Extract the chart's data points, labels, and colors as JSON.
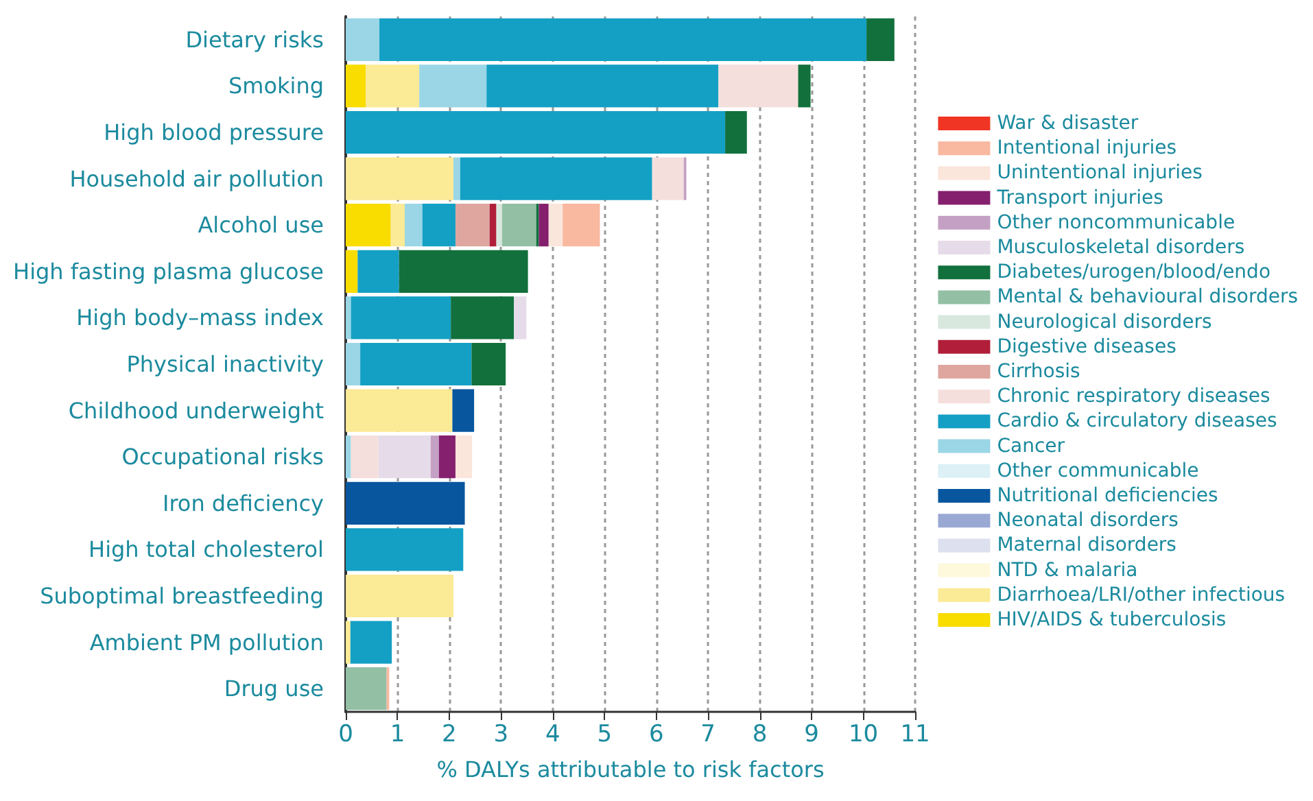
{
  "chart_data": {
    "type": "bar",
    "orientation": "horizontal",
    "stacked": true,
    "xlabel": "% DALYs attributable to risk factors",
    "categories": [
      "Dietary risks",
      "Smoking",
      "High blood pressure",
      "Household air pollution",
      "Alcohol use",
      "High fasting plasma glucose",
      "High body–mass index",
      "Physical inactivity",
      "Childhood underweight",
      "Occupational risks",
      "Iron deficiency",
      "High total cholesterol",
      "Suboptimal breastfeeding",
      "Ambient PM pollution",
      "Drug use"
    ],
    "xlim": [
      0,
      11
    ],
    "xticks": [
      0,
      1,
      2,
      3,
      4,
      5,
      6,
      7,
      8,
      9,
      10,
      11
    ],
    "grid": "x",
    "legend": "right",
    "series": [
      {
        "name": "HIV/AIDS & tuberculosis",
        "color": "#f9dc00",
        "values": [
          null,
          0.39,
          null,
          null,
          0.87,
          0.23,
          null,
          null,
          null,
          null,
          null,
          null,
          null,
          null,
          null
        ]
      },
      {
        "name": "Diarrhoea/LRI/other infectious",
        "color": "#fbea96",
        "values": [
          null,
          1.03,
          null,
          2.08,
          0.27,
          null,
          null,
          null,
          2.06,
          null,
          null,
          null,
          2.08,
          0.09,
          null
        ]
      },
      {
        "name": "NTD & malaria",
        "color": "#fef8dc",
        "values": [
          null,
          null,
          null,
          null,
          null,
          null,
          null,
          null,
          null,
          null,
          null,
          null,
          null,
          null,
          null
        ]
      },
      {
        "name": "Maternal disorders",
        "color": "#dde0ef",
        "values": [
          null,
          null,
          null,
          null,
          null,
          null,
          null,
          null,
          null,
          null,
          null,
          null,
          null,
          null,
          null
        ]
      },
      {
        "name": "Neonatal disorders",
        "color": "#9aa8d4",
        "values": [
          null,
          null,
          null,
          null,
          null,
          null,
          null,
          null,
          null,
          null,
          null,
          null,
          null,
          null,
          null
        ]
      },
      {
        "name": "Nutritional deficiencies",
        "color": "#08569e",
        "values": [
          null,
          null,
          null,
          null,
          null,
          null,
          null,
          null,
          0.42,
          null,
          2.3,
          null,
          null,
          null,
          null
        ]
      },
      {
        "name": "Other communicable",
        "color": "#dcf0f5",
        "values": [
          null,
          null,
          null,
          null,
          null,
          null,
          null,
          null,
          null,
          null,
          null,
          null,
          null,
          null,
          null
        ]
      },
      {
        "name": "Cancer",
        "color": "#9ad6e6",
        "values": [
          0.65,
          1.3,
          null,
          0.13,
          0.34,
          null,
          0.1,
          0.28,
          null,
          0.1,
          null,
          null,
          null,
          null,
          null
        ]
      },
      {
        "name": "Cardio & circulatory diseases",
        "color": "#14a0c4",
        "values": [
          9.41,
          4.48,
          7.33,
          3.71,
          0.64,
          0.8,
          1.93,
          2.15,
          null,
          null,
          null,
          2.27,
          null,
          0.8,
          null
        ]
      },
      {
        "name": "Chronic respiratory diseases",
        "color": "#f5dfdc",
        "values": [
          null,
          1.54,
          null,
          0.61,
          null,
          null,
          null,
          null,
          null,
          0.53,
          null,
          null,
          null,
          null,
          null
        ]
      },
      {
        "name": "Cirrhosis",
        "color": "#dfa6a0",
        "values": [
          null,
          null,
          null,
          null,
          0.66,
          null,
          null,
          null,
          null,
          null,
          null,
          null,
          null,
          null,
          null
        ]
      },
      {
        "name": "Digestive diseases",
        "color": "#b01e3a",
        "values": [
          null,
          null,
          null,
          null,
          0.13,
          null,
          null,
          null,
          null,
          null,
          null,
          null,
          null,
          null,
          null
        ]
      },
      {
        "name": "Neurological disorders",
        "color": "#d8e8de",
        "values": [
          null,
          null,
          null,
          null,
          0.11,
          null,
          null,
          null,
          null,
          null,
          null,
          null,
          null,
          null,
          null
        ]
      },
      {
        "name": "Mental & behavioural disorders",
        "color": "#93bfa5",
        "values": [
          null,
          null,
          null,
          null,
          0.66,
          null,
          null,
          null,
          null,
          null,
          null,
          null,
          null,
          null,
          0.79
        ]
      },
      {
        "name": "Diabetes/urogen/blood/endo",
        "color": "#12703c",
        "values": [
          0.54,
          0.24,
          0.42,
          null,
          0.05,
          2.49,
          1.22,
          0.66,
          null,
          null,
          null,
          null,
          null,
          null,
          null
        ]
      },
      {
        "name": "Musculoskeletal disorders",
        "color": "#e6dbe8",
        "values": [
          null,
          null,
          null,
          null,
          null,
          null,
          0.24,
          null,
          null,
          1.01,
          null,
          null,
          null,
          null,
          null
        ]
      },
      {
        "name": "Other noncommunicable",
        "color": "#c4a0c4",
        "values": [
          null,
          null,
          null,
          0.05,
          null,
          null,
          null,
          null,
          null,
          0.16,
          null,
          null,
          null,
          null,
          null
        ]
      },
      {
        "name": "Transport injuries",
        "color": "#84206e",
        "values": [
          null,
          null,
          null,
          null,
          0.19,
          null,
          null,
          null,
          null,
          0.32,
          null,
          null,
          null,
          null,
          null
        ]
      },
      {
        "name": "Unintentional injuries",
        "color": "#fbe6dc",
        "values": [
          null,
          null,
          null,
          null,
          0.27,
          null,
          null,
          null,
          null,
          0.32,
          null,
          null,
          null,
          null,
          null
        ]
      },
      {
        "name": "Intentional injuries",
        "color": "#f9b8a0",
        "values": [
          null,
          null,
          null,
          null,
          0.72,
          null,
          null,
          null,
          null,
          null,
          null,
          null,
          null,
          null,
          0.05
        ]
      },
      {
        "name": "War & disaster",
        "color": "#f03524",
        "values": [
          null,
          null,
          null,
          null,
          null,
          null,
          null,
          null,
          null,
          null,
          null,
          null,
          null,
          null,
          null
        ]
      }
    ]
  }
}
